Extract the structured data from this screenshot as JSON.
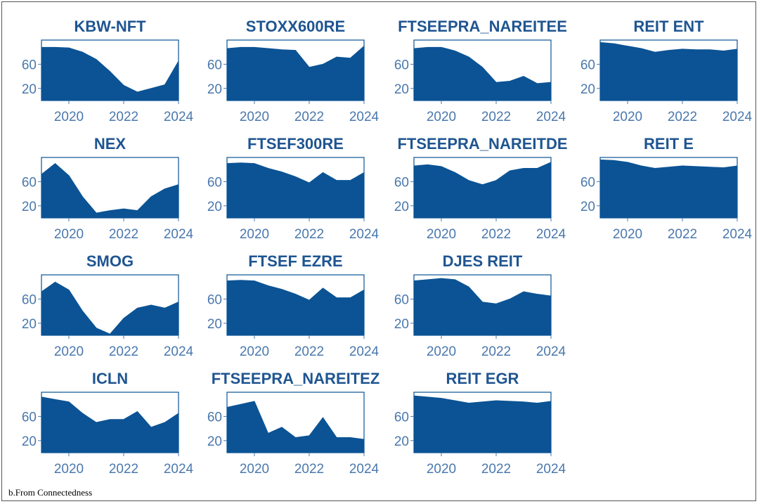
{
  "caption": "b.From Connectedness",
  "colors": {
    "fill": "#0b5394",
    "title": "#1f5591",
    "tick": "#4a78ad"
  },
  "chart_data": [
    {
      "type": "area",
      "title": "KBW-NFT",
      "xticks": [
        "2020",
        "2022",
        "2024"
      ],
      "yticks": [
        "20",
        "60"
      ],
      "xlim": [
        2019,
        2024
      ],
      "ylim": [
        0,
        100
      ],
      "x": [
        2019,
        2019.5,
        2020,
        2020.5,
        2021,
        2021.5,
        2022,
        2022.5,
        2023,
        2023.5,
        2024
      ],
      "y": [
        88,
        88,
        87,
        80,
        68,
        48,
        25,
        14,
        20,
        26,
        65
      ]
    },
    {
      "type": "area",
      "title": "STOXX600RE",
      "xticks": [
        "2020",
        "2022",
        "2024"
      ],
      "yticks": [
        "20",
        "60"
      ],
      "xlim": [
        2019,
        2024
      ],
      "ylim": [
        0,
        100
      ],
      "x": [
        2019,
        2019.5,
        2020,
        2020.5,
        2021,
        2021.5,
        2022,
        2022.5,
        2023,
        2023.5,
        2024
      ],
      "y": [
        86,
        88,
        88,
        86,
        84,
        83,
        55,
        60,
        72,
        70,
        90
      ]
    },
    {
      "type": "area",
      "title": "FTSEEPRA_NAREITEE",
      "xticks": [
        "2020",
        "2022",
        "2024"
      ],
      "yticks": [
        "20",
        "60"
      ],
      "xlim": [
        2019,
        2024
      ],
      "ylim": [
        0,
        100
      ],
      "x": [
        2019,
        2019.5,
        2020,
        2020.5,
        2021,
        2021.5,
        2022,
        2022.5,
        2023,
        2023.5,
        2024
      ],
      "y": [
        86,
        88,
        88,
        82,
        72,
        55,
        30,
        32,
        40,
        28,
        30
      ]
    },
    {
      "type": "area",
      "title": "REIT ENT",
      "xticks": [
        "2020",
        "2022",
        "2024"
      ],
      "yticks": [
        "20",
        "60"
      ],
      "xlim": [
        2019,
        2024
      ],
      "ylim": [
        0,
        100
      ],
      "x": [
        2019,
        2019.5,
        2020,
        2020.5,
        2021,
        2021.5,
        2022,
        2022.5,
        2023,
        2023.5,
        2024
      ],
      "y": [
        96,
        94,
        90,
        86,
        80,
        83,
        85,
        84,
        84,
        82,
        85
      ]
    },
    {
      "type": "area",
      "title": "NEX",
      "xticks": [
        "2020",
        "2022",
        "2024"
      ],
      "yticks": [
        "20",
        "60"
      ],
      "xlim": [
        2019,
        2024
      ],
      "ylim": [
        0,
        100
      ],
      "x": [
        2019,
        2019.5,
        2020,
        2020.5,
        2021,
        2021.5,
        2022,
        2022.5,
        2023,
        2023.5,
        2024
      ],
      "y": [
        72,
        90,
        70,
        35,
        8,
        12,
        15,
        12,
        35,
        48,
        55
      ]
    },
    {
      "type": "area",
      "title": "FTSEF300RE",
      "xticks": [
        "2020",
        "2022",
        "2024"
      ],
      "yticks": [
        "20",
        "60"
      ],
      "xlim": [
        2019,
        2024
      ],
      "ylim": [
        0,
        100
      ],
      "x": [
        2019,
        2019.5,
        2020,
        2020.5,
        2021,
        2021.5,
        2022,
        2022.5,
        2023,
        2023.5,
        2024
      ],
      "y": [
        90,
        91,
        90,
        82,
        76,
        68,
        58,
        75,
        62,
        62,
        75
      ]
    },
    {
      "type": "area",
      "title": "FTSEEPRA_NAREITDE",
      "xticks": [
        "2020",
        "2022",
        "2024"
      ],
      "yticks": [
        "20",
        "60"
      ],
      "xlim": [
        2019,
        2024
      ],
      "ylim": [
        0,
        100
      ],
      "x": [
        2019,
        2019.5,
        2020,
        2020.5,
        2021,
        2021.5,
        2022,
        2022.5,
        2023,
        2023.5,
        2024
      ],
      "y": [
        86,
        88,
        85,
        75,
        62,
        55,
        62,
        78,
        82,
        82,
        92
      ]
    },
    {
      "type": "area",
      "title": "REIT E",
      "xticks": [
        "2020",
        "2022",
        "2024"
      ],
      "yticks": [
        "20",
        "60"
      ],
      "xlim": [
        2019,
        2024
      ],
      "ylim": [
        0,
        100
      ],
      "x": [
        2019,
        2019.5,
        2020,
        2020.5,
        2021,
        2021.5,
        2022,
        2022.5,
        2023,
        2023.5,
        2024
      ],
      "y": [
        96,
        95,
        92,
        86,
        82,
        84,
        86,
        85,
        84,
        83,
        86
      ]
    },
    {
      "type": "area",
      "title": "SMOG",
      "xticks": [
        "2020",
        "2022",
        "2024"
      ],
      "yticks": [
        "20",
        "60"
      ],
      "xlim": [
        2019,
        2024
      ],
      "ylim": [
        0,
        100
      ],
      "x": [
        2019,
        2019.5,
        2020,
        2020.5,
        2021,
        2021.5,
        2022,
        2022.5,
        2023,
        2023.5,
        2024
      ],
      "y": [
        72,
        88,
        75,
        40,
        12,
        2,
        28,
        45,
        50,
        45,
        55
      ]
    },
    {
      "type": "area",
      "title": "FTSEF EZRE",
      "xticks": [
        "2020",
        "2022",
        "2024"
      ],
      "yticks": [
        "20",
        "60"
      ],
      "xlim": [
        2019,
        2024
      ],
      "ylim": [
        0,
        100
      ],
      "x": [
        2019,
        2019.5,
        2020,
        2020.5,
        2021,
        2021.5,
        2022,
        2022.5,
        2023,
        2023.5,
        2024
      ],
      "y": [
        90,
        91,
        90,
        82,
        76,
        68,
        58,
        78,
        62,
        62,
        75
      ]
    },
    {
      "type": "area",
      "title": "DJES REIT",
      "xticks": [
        "2020",
        "2022",
        "2024"
      ],
      "yticks": [
        "20",
        "60"
      ],
      "xlim": [
        2019,
        2024
      ],
      "ylim": [
        0,
        100
      ],
      "x": [
        2019,
        2019.5,
        2020,
        2020.5,
        2021,
        2021.5,
        2022,
        2022.5,
        2023,
        2023.5,
        2024
      ],
      "y": [
        90,
        92,
        94,
        92,
        80,
        55,
        52,
        60,
        72,
        68,
        65
      ]
    },
    {
      "type": "area",
      "title": "ICLN",
      "xticks": [
        "2020",
        "2022",
        "2024"
      ],
      "yticks": [
        "20",
        "60"
      ],
      "xlim": [
        2019,
        2024
      ],
      "ylim": [
        0,
        100
      ],
      "x": [
        2019,
        2019.5,
        2020,
        2020.5,
        2021,
        2021.5,
        2022,
        2022.5,
        2023,
        2023.5,
        2024
      ],
      "y": [
        92,
        88,
        84,
        65,
        50,
        55,
        55,
        68,
        42,
        50,
        65
      ]
    },
    {
      "type": "area",
      "title": "FTSEEPRA_NAREITEZ",
      "xticks": [
        "2020",
        "2022",
        "2024"
      ],
      "yticks": [
        "20",
        "60"
      ],
      "xlim": [
        2019,
        2024
      ],
      "ylim": [
        0,
        100
      ],
      "x": [
        2019,
        2019.5,
        2020,
        2020.5,
        2021,
        2021.5,
        2022,
        2022.5,
        2023,
        2023.5,
        2024
      ],
      "y": [
        75,
        80,
        85,
        32,
        42,
        25,
        28,
        58,
        25,
        25,
        22
      ]
    },
    {
      "type": "area",
      "title": "REIT EGR",
      "xticks": [
        "2020",
        "2022",
        "2024"
      ],
      "yticks": [
        "20",
        "60"
      ],
      "xlim": [
        2019,
        2024
      ],
      "ylim": [
        0,
        100
      ],
      "x": [
        2019,
        2019.5,
        2020,
        2020.5,
        2021,
        2021.5,
        2022,
        2022.5,
        2023,
        2023.5,
        2024
      ],
      "y": [
        94,
        92,
        90,
        86,
        82,
        84,
        86,
        85,
        84,
        82,
        85
      ]
    }
  ]
}
